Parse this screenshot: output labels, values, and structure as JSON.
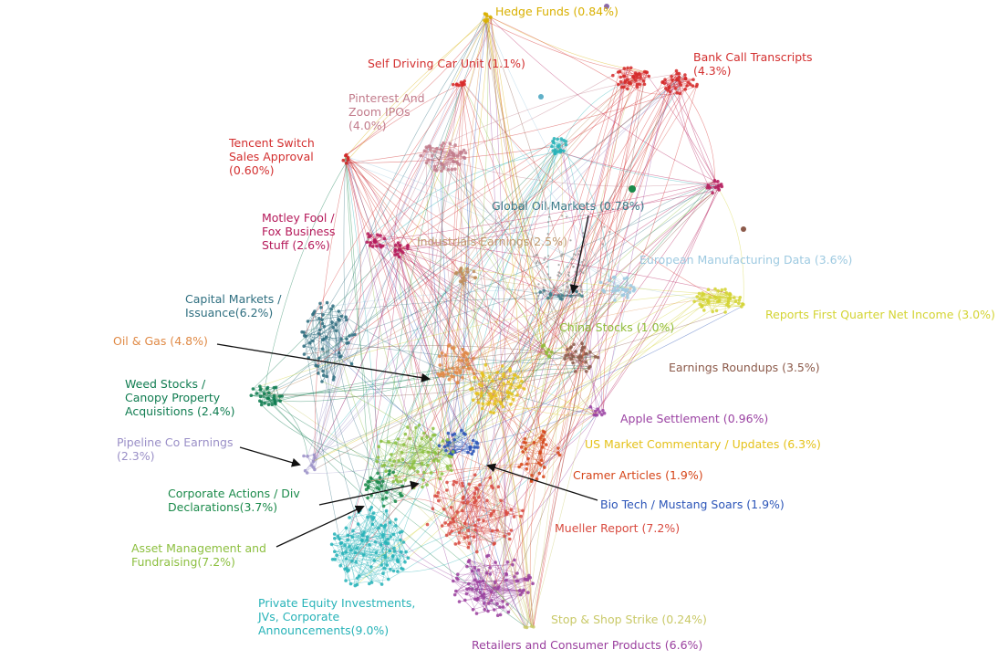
{
  "colors": {
    "bank_call": "#d52a2a",
    "pinterest": "#c27c8c",
    "self_driving": "#d82c2c",
    "tencent": "#d02525",
    "motley": "#b5195a",
    "industrials": "#c08d5c",
    "global_oil": "#3d7c8a",
    "european": "#9ecae1",
    "reports_q1": "#d4d433",
    "capital_markets": "#2f6f80",
    "oil_gas": "#e08a46",
    "china_stocks": "#8fbc3a",
    "earnings_roundups": "#8c5a4a",
    "weed": "#0f7c50",
    "apple": "#9b43a3",
    "us_market": "#e5c21b",
    "pipeline": "#9a8fc7",
    "cramer": "#d6461a",
    "corporate_actions": "#1a8a4a",
    "biotech": "#2c55b8",
    "mueller": "#d84a3f",
    "asset_mgmt": "#8cbf3f",
    "private_equity": "#27b3b8",
    "stop_shop": "#c9c968",
    "retailers": "#9a3f9e",
    "hedge_funds": "#d9b000",
    "grey": "#9a9a9a",
    "arrow": "#111111"
  },
  "labels": [
    {
      "id": "hedge-funds",
      "lines": [
        "Hedge Funds (0.84%)"
      ],
      "color": "#d9b000"
    },
    {
      "id": "self-driving",
      "lines": [
        "Self Driving Car Unit (1.1%)"
      ],
      "color": "#d32f2f"
    },
    {
      "id": "bank-call",
      "lines": [
        "Bank Call Transcripts",
        "(4.3%)"
      ],
      "color": "#d32f2f"
    },
    {
      "id": "pinterest",
      "lines": [
        "Pinterest And",
        "Zoom IPOs",
        "(4.0%)"
      ],
      "color": "#c27c8c"
    },
    {
      "id": "tencent",
      "lines": [
        "Tencent Switch",
        "Sales Approval",
        "(0.60%)"
      ],
      "color": "#d32f2f"
    },
    {
      "id": "global-oil",
      "lines": [
        "Global Oil Markets (0.78%)"
      ],
      "color": "#3d7c8a"
    },
    {
      "id": "motley",
      "lines": [
        "Motley Fool /",
        "Fox Business",
        "Stuff (2.6%)"
      ],
      "color": "#b5195a"
    },
    {
      "id": "industrials",
      "lines": [
        "Industrials Earnings(2.5%)"
      ],
      "color": "#c09a6e"
    },
    {
      "id": "european",
      "lines": [
        "European Manufacturing Data (3.6%)"
      ],
      "color": "#9ecae1"
    },
    {
      "id": "capital-markets",
      "lines": [
        "Capital Markets /",
        "Issuance(6.2%)"
      ],
      "color": "#2f6f80"
    },
    {
      "id": "reports-q1",
      "lines": [
        "Reports First Quarter Net Income  (3.0%)"
      ],
      "color": "#d4d433"
    },
    {
      "id": "china-stocks",
      "lines": [
        "China Stocks (1.0%)"
      ],
      "color": "#8fbc3a"
    },
    {
      "id": "oil-gas",
      "lines": [
        "Oil & Gas (4.8%)"
      ],
      "color": "#e08a46"
    },
    {
      "id": "earnings-roundups",
      "lines": [
        "Earnings Roundups (3.5%)"
      ],
      "color": "#8c5a4a"
    },
    {
      "id": "weed",
      "lines": [
        "Weed Stocks /",
        "Canopy Property",
        "Acquisitions (2.4%)"
      ],
      "color": "#0f7c50"
    },
    {
      "id": "apple",
      "lines": [
        "Apple Settlement (0.96%)"
      ],
      "color": "#9b43a3"
    },
    {
      "id": "us-market",
      "lines": [
        "US Market Commentary / Updates (6.3%)"
      ],
      "color": "#e5c21b"
    },
    {
      "id": "pipeline",
      "lines": [
        "Pipeline Co Earnings",
        "(2.3%)"
      ],
      "color": "#9a8fc7"
    },
    {
      "id": "cramer",
      "lines": [
        "Cramer Articles (1.9%)"
      ],
      "color": "#d6461a"
    },
    {
      "id": "corporate-actions",
      "lines": [
        "Corporate Actions / Div",
        "Declarations(3.7%)"
      ],
      "color": "#1a8a4a"
    },
    {
      "id": "biotech",
      "lines": [
        "Bio Tech / Mustang Soars (1.9%)"
      ],
      "color": "#2c55b8"
    },
    {
      "id": "mueller",
      "lines": [
        "Mueller Report (7.2%)"
      ],
      "color": "#d84a3f"
    },
    {
      "id": "asset-mgmt",
      "lines": [
        "Asset Management and",
        "Fundraising(7.2%)"
      ],
      "color": "#8cbf3f"
    },
    {
      "id": "private-equity",
      "lines": [
        "Private Equity Investments,",
        "JVs, Corporate",
        "Announcements(9.0%)"
      ],
      "color": "#27b3b8"
    },
    {
      "id": "stop-shop",
      "lines": [
        "Stop & Shop Strike (0.24%)"
      ],
      "color": "#c9c968"
    },
    {
      "id": "retailers",
      "lines": [
        "Retailers and Consumer Products (6.6%)"
      ],
      "color": "#9a3f9e"
    }
  ]
}
